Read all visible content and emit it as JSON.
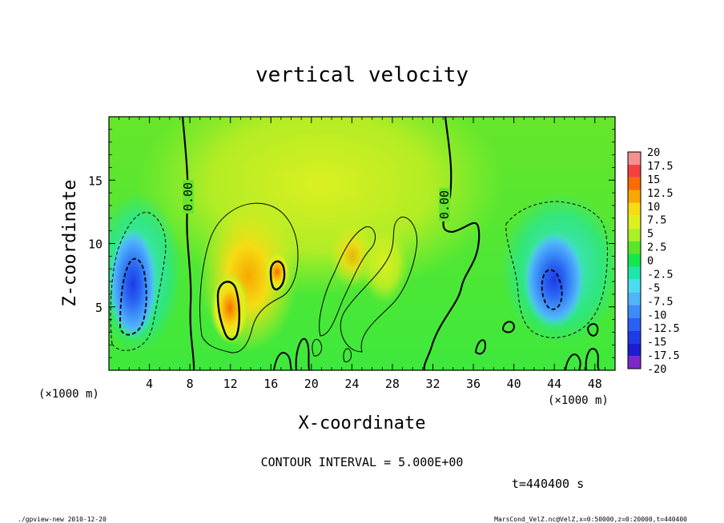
{
  "chart_data": {
    "type": "heatmap",
    "title": "vertical velocity",
    "xlabel": "X-coordinate",
    "ylabel": "Z-coordinate",
    "x_unit_label": "(×1000 m)",
    "y_unit_label": "(×1000 m)",
    "xlim": [
      0,
      50
    ],
    "ylim": [
      0,
      20
    ],
    "x_ticks": [
      4,
      8,
      12,
      16,
      20,
      24,
      28,
      32,
      36,
      40,
      44,
      48
    ],
    "y_ticks": [
      5,
      10,
      15
    ],
    "x_tick_labels": [
      "4",
      "8",
      "12",
      "16",
      "20",
      "24",
      "28",
      "32",
      "36",
      "40",
      "44",
      "48"
    ],
    "y_tick_labels": [
      "5",
      "10",
      "15"
    ],
    "contour_interval_text": "CONTOUR INTERVAL = 5.000E+00",
    "time_text": "t=440400 s",
    "zero_contour_labels": [
      "0.00",
      "0.00"
    ],
    "colorbar": {
      "levels": [
        -20,
        -17.5,
        -15,
        -12.5,
        -10,
        -7.5,
        -5,
        -2.5,
        0,
        2.5,
        5,
        7.5,
        10,
        12.5,
        15,
        17.5,
        20
      ],
      "labels": [
        "-20",
        "-17.5",
        "-15",
        "-12.5",
        "-10",
        "-7.5",
        "-5",
        "-2.5",
        "0",
        "2.5",
        "5",
        "7.5",
        "10",
        "12.5",
        "15",
        "17.5",
        "20"
      ],
      "colors": [
        "#7f28c8",
        "#1c1cd0",
        "#1e3ce6",
        "#2860f2",
        "#3c8cf8",
        "#50b4fa",
        "#4cdcf0",
        "#1ee6aa",
        "#14e650",
        "#5ae628",
        "#aaf028",
        "#dcf020",
        "#f5dc14",
        "#f7a800",
        "#f86c00",
        "#f54040",
        "#f59090"
      ]
    },
    "features": [
      {
        "kind": "downdraft",
        "x_center": 2.2,
        "z_center": 6.0,
        "min_value": -12.5
      },
      {
        "kind": "updraft",
        "x_center": 12.0,
        "z_center": 5.0,
        "max_value": 14
      },
      {
        "kind": "updraft",
        "x_center": 16.5,
        "z_center": 7.5,
        "max_value": 12
      },
      {
        "kind": "updraft",
        "x_center": 24.5,
        "z_center": 9.0,
        "max_value": 7
      },
      {
        "kind": "downdraft",
        "x_center": 44.0,
        "z_center": 6.5,
        "min_value": -13
      }
    ]
  },
  "footer": {
    "left": "./gpview-new   2010-12-20",
    "right": "MarsCond_VelZ.nc@VelZ,x=0:50000,z=0:20000,t=440400"
  }
}
